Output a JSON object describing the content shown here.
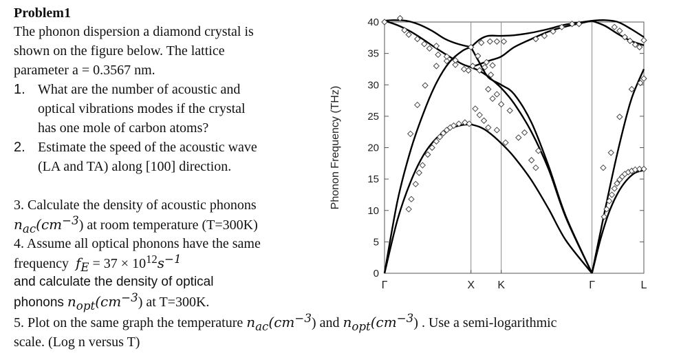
{
  "problem": {
    "title": "Problem1",
    "intro": [
      "The phonon dispersion  a diamond  crystal is",
      "shown  on  the figure  below.  The lattice",
      "parameter a = 0.3567 nm."
    ],
    "q1_num": "1.",
    "q1": [
      "What are  the  number of acoustic and",
      "optical vibrations modes if the crystal",
      "has one mole of carbon atoms?"
    ],
    "q2_num": "2.",
    "q2": [
      "Estimate the speed of the  acoustic wave",
      "(LA and TA)  along [100] direction."
    ],
    "q3_line1": "3. Calculate the density of acoustic phonons",
    "q3_var": "n",
    "q3_sub": "ac",
    "q3_unit": "(cm",
    "q3_exp": "−3",
    "q3_tail": ") at room temperature (T=300K)",
    "q4_line1": "4. Assume all optical phonons have the same",
    "q4_freq_label": "frequency",
    "q4_var": "f",
    "q4_sub": "E",
    "q4_eq": "=  37 × 10",
    "q4_exp": "12",
    "q4_s": "s",
    "q4_sexp": "−1",
    "q4_line3": " and calculate the density of optical",
    "q4_phonons": "phonons",
    "q4_var2": "n",
    "q4_sub2": "opt",
    "q4_unit2": "(cm",
    "q4_exp2": "−3",
    "q4_tail": ") at T=300K.",
    "q5_start": "5. Plot on the same graph the temperature",
    "q5_var1": "n",
    "q5_sub1": "ac",
    "q5_unit1": "(cm",
    "q5_exp1": "−3",
    "q5_mid": ") and",
    "q5_var2": "n",
    "q5_sub2": "opt",
    "q5_unit2": "(cm",
    "q5_exp2": "−3",
    "q5_tail": ") . Use a semi-logarithmic",
    "q5_line2": "scale. (Log n versus T)"
  },
  "chart_data": {
    "type": "scatter",
    "ylabel": "Phonon Frequency (THz)",
    "ylim": [
      0,
      40
    ],
    "yticks": [
      0,
      5,
      10,
      15,
      20,
      25,
      30,
      35,
      40
    ],
    "x_points": [
      "Γ",
      "X",
      "K",
      "Γ",
      "L"
    ],
    "x_positions": [
      0,
      1,
      1.35,
      2.4,
      3.0
    ],
    "line_color": "#000000",
    "marker_color": "#444444",
    "curves": [
      {
        "x": [
          0,
          0.1,
          0.25,
          0.4,
          0.55,
          0.7,
          0.85,
          1.0
        ],
        "y": [
          40.2,
          40.3,
          40.2,
          39.6,
          38.6,
          37.3,
          36.5,
          36.0
        ]
      },
      {
        "x": [
          0,
          0.15,
          0.3,
          0.45,
          0.6,
          0.75,
          0.9,
          1.0
        ],
        "y": [
          40.2,
          39.5,
          38.5,
          37.2,
          35.8,
          34.5,
          33.3,
          32.8
        ]
      },
      {
        "x": [
          0,
          0.15,
          0.3,
          0.45,
          0.6,
          0.75,
          0.9,
          1.0
        ],
        "y": [
          0,
          8.5,
          14.5,
          18.8,
          21.5,
          23.0,
          23.6,
          23.7
        ]
      },
      {
        "x": [
          0,
          0.15,
          0.3,
          0.45,
          0.6,
          0.75,
          0.9,
          1.0
        ],
        "y": [
          0,
          11.5,
          19.5,
          25.5,
          30.3,
          33.6,
          35.4,
          36.0
        ]
      },
      {
        "x": [
          1.0,
          1.1,
          1.2,
          1.35,
          1.5,
          1.7,
          1.9,
          2.1,
          2.4
        ],
        "y": [
          36.0,
          33.5,
          31.2,
          30.0,
          28.5,
          24.0,
          17.0,
          9.0,
          0
        ]
      },
      {
        "x": [
          1.0,
          1.1,
          1.2,
          1.35,
          1.5,
          1.7,
          1.9,
          2.1,
          2.4
        ],
        "y": [
          23.7,
          23.3,
          22.5,
          20.7,
          18.5,
          14.8,
          10.2,
          5.2,
          0
        ]
      },
      {
        "x": [
          1.0,
          1.2,
          1.35,
          1.5,
          1.7,
          1.9,
          2.1,
          2.4
        ],
        "y": [
          32.8,
          33.8,
          34.5,
          36.0,
          37.3,
          38.5,
          39.3,
          40.2
        ]
      },
      {
        "x": [
          1.0,
          1.1,
          1.2,
          1.35,
          1.5,
          1.7,
          1.9,
          2.1,
          2.4
        ],
        "y": [
          36.0,
          37.2,
          37.8,
          37.8,
          37.9,
          38.3,
          38.9,
          39.6,
          40.2
        ]
      },
      {
        "x": [
          1.0,
          1.1,
          1.2,
          1.35,
          1.5,
          1.7,
          1.9,
          2.1,
          2.4
        ],
        "y": [
          32.8,
          32.2,
          31.3,
          29.5,
          27.0,
          22.5,
          16.5,
          8.8,
          0
        ]
      },
      {
        "x": [
          2.4,
          2.55,
          2.7,
          2.85,
          3.0
        ],
        "y": [
          40.2,
          40.3,
          40.0,
          38.9,
          37.6
        ]
      },
      {
        "x": [
          2.4,
          2.55,
          2.7,
          2.85,
          3.0
        ],
        "y": [
          40.2,
          39.4,
          38.1,
          37.0,
          36.3
        ]
      },
      {
        "x": [
          2.4,
          2.55,
          2.7,
          2.85,
          3.0
        ],
        "y": [
          0,
          10.0,
          19.5,
          27.5,
          32.5
        ]
      },
      {
        "x": [
          2.4,
          2.5,
          2.6,
          2.7,
          2.8,
          2.9,
          3.0
        ],
        "y": [
          0,
          5.5,
          9.8,
          12.8,
          14.8,
          16.0,
          16.4
        ]
      }
    ],
    "points": [
      [
        0.0,
        40.0
      ],
      [
        0.23,
        38.7
      ],
      [
        0.28,
        38.0
      ],
      [
        0.38,
        37.3
      ],
      [
        0.46,
        36.5
      ],
      [
        0.52,
        35.8
      ],
      [
        0.62,
        34.8
      ],
      [
        0.72,
        33.8
      ],
      [
        0.82,
        33.2
      ],
      [
        0.92,
        32.5
      ],
      [
        0.97,
        32.3
      ],
      [
        0.6,
        36.2
      ],
      [
        0.72,
        34.5
      ],
      [
        0.82,
        33.9
      ],
      [
        1.0,
        36.0
      ],
      [
        1.08,
        34.6
      ],
      [
        1.12,
        36.7
      ],
      [
        1.18,
        33.6
      ],
      [
        1.22,
        36.9
      ],
      [
        1.3,
        36.9
      ],
      [
        1.38,
        36.9
      ],
      [
        0.18,
        42.0
      ],
      [
        1.02,
        33.0
      ],
      [
        1.1,
        32.3
      ],
      [
        1.16,
        32.8
      ],
      [
        1.23,
        31.6
      ],
      [
        1.25,
        33.1
      ],
      [
        0.28,
        10.2
      ],
      [
        0.31,
        11.8
      ],
      [
        0.36,
        14.2
      ],
      [
        0.4,
        16.0
      ],
      [
        0.44,
        17.2
      ],
      [
        0.5,
        18.9
      ],
      [
        0.55,
        20.0
      ],
      [
        0.6,
        21.0
      ],
      [
        0.64,
        21.7
      ],
      [
        0.68,
        22.3
      ],
      [
        0.72,
        22.8
      ],
      [
        0.76,
        23.2
      ],
      [
        0.8,
        23.5
      ],
      [
        0.86,
        23.8
      ],
      [
        0.93,
        24.0
      ],
      [
        0.98,
        23.8
      ],
      [
        0.3,
        22.2
      ],
      [
        0.38,
        26.8
      ],
      [
        0.47,
        29.9
      ],
      [
        0.6,
        33.0
      ],
      [
        1.05,
        26.2
      ],
      [
        1.1,
        25.2
      ],
      [
        1.15,
        24.3
      ],
      [
        1.2,
        29.3
      ],
      [
        1.25,
        27.8
      ],
      [
        1.3,
        28.5
      ],
      [
        1.35,
        26.9
      ],
      [
        1.45,
        25.9
      ],
      [
        1.55,
        21.6
      ],
      [
        1.62,
        22.4
      ],
      [
        1.7,
        18.0
      ],
      [
        1.75,
        16.8
      ],
      [
        1.78,
        19.5
      ],
      [
        1.2,
        23.2
      ],
      [
        1.3,
        22.8
      ],
      [
        1.4,
        20.8
      ],
      [
        1.75,
        37.3
      ],
      [
        1.85,
        37.8
      ],
      [
        1.95,
        38.5
      ],
      [
        2.05,
        39.2
      ],
      [
        2.17,
        39.7
      ],
      [
        2.25,
        39.7
      ],
      [
        2.66,
        39.2
      ],
      [
        2.72,
        38.6
      ],
      [
        2.78,
        37.6
      ],
      [
        2.84,
        37.0
      ],
      [
        2.9,
        36.4
      ],
      [
        2.95,
        36.0
      ],
      [
        3.0,
        37.1
      ],
      [
        2.54,
        9.0
      ],
      [
        2.57,
        10.2
      ],
      [
        2.6,
        11.5
      ],
      [
        2.63,
        12.5
      ],
      [
        2.66,
        13.5
      ],
      [
        2.69,
        14.3
      ],
      [
        2.72,
        14.9
      ],
      [
        2.75,
        15.4
      ],
      [
        2.78,
        15.8
      ],
      [
        2.82,
        16.1
      ],
      [
        2.86,
        16.3
      ],
      [
        2.9,
        16.5
      ],
      [
        2.95,
        16.6
      ],
      [
        3.0,
        16.6
      ],
      [
        2.53,
        16.8
      ],
      [
        2.62,
        19.2
      ],
      [
        2.72,
        24.9
      ],
      [
        2.86,
        29.3
      ],
      [
        2.96,
        30.3
      ],
      [
        3.0,
        31.0
      ]
    ]
  }
}
